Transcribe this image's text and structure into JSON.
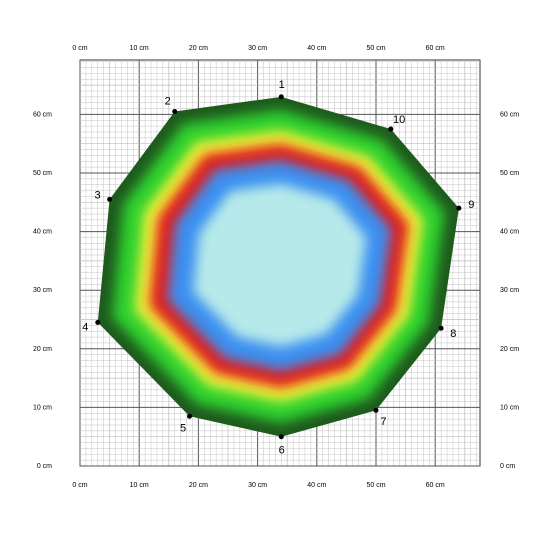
{
  "axis": {
    "x_ticks": [
      "0 cm",
      "10 cm",
      "20 cm",
      "30 cm",
      "40 cm",
      "50 cm",
      "60 cm"
    ],
    "y_ticks": [
      "0 cm",
      "10 cm",
      "20 cm",
      "30 cm",
      "40 cm",
      "50 cm",
      "60 cm"
    ],
    "x_range_cm": [
      0,
      66
    ],
    "y_range_cm": [
      0,
      68
    ],
    "minor_step_cm": 1,
    "major_step_cm": 10
  },
  "colors": {
    "outer": "#1e5a1e",
    "green": "#2ed12e",
    "yellow": "#f3f53a",
    "red": "#e01a1a",
    "blue": "#3a8ff0",
    "center": "#b6eaea"
  },
  "measurement_points": [
    {
      "label": "1",
      "x_cm": 34,
      "y_cm": 63
    },
    {
      "label": "2",
      "x_cm": 16,
      "y_cm": 60.5
    },
    {
      "label": "3",
      "x_cm": 5,
      "y_cm": 45.5
    },
    {
      "label": "4",
      "x_cm": 3,
      "y_cm": 24.5
    },
    {
      "label": "5",
      "x_cm": 18.5,
      "y_cm": 8.5
    },
    {
      "label": "6",
      "x_cm": 34,
      "y_cm": 5
    },
    {
      "label": "7",
      "x_cm": 50,
      "y_cm": 9.5
    },
    {
      "label": "8",
      "x_cm": 61,
      "y_cm": 23.5
    },
    {
      "label": "9",
      "x_cm": 64,
      "y_cm": 44
    },
    {
      "label": "10",
      "x_cm": 52.5,
      "y_cm": 57.5
    }
  ]
}
